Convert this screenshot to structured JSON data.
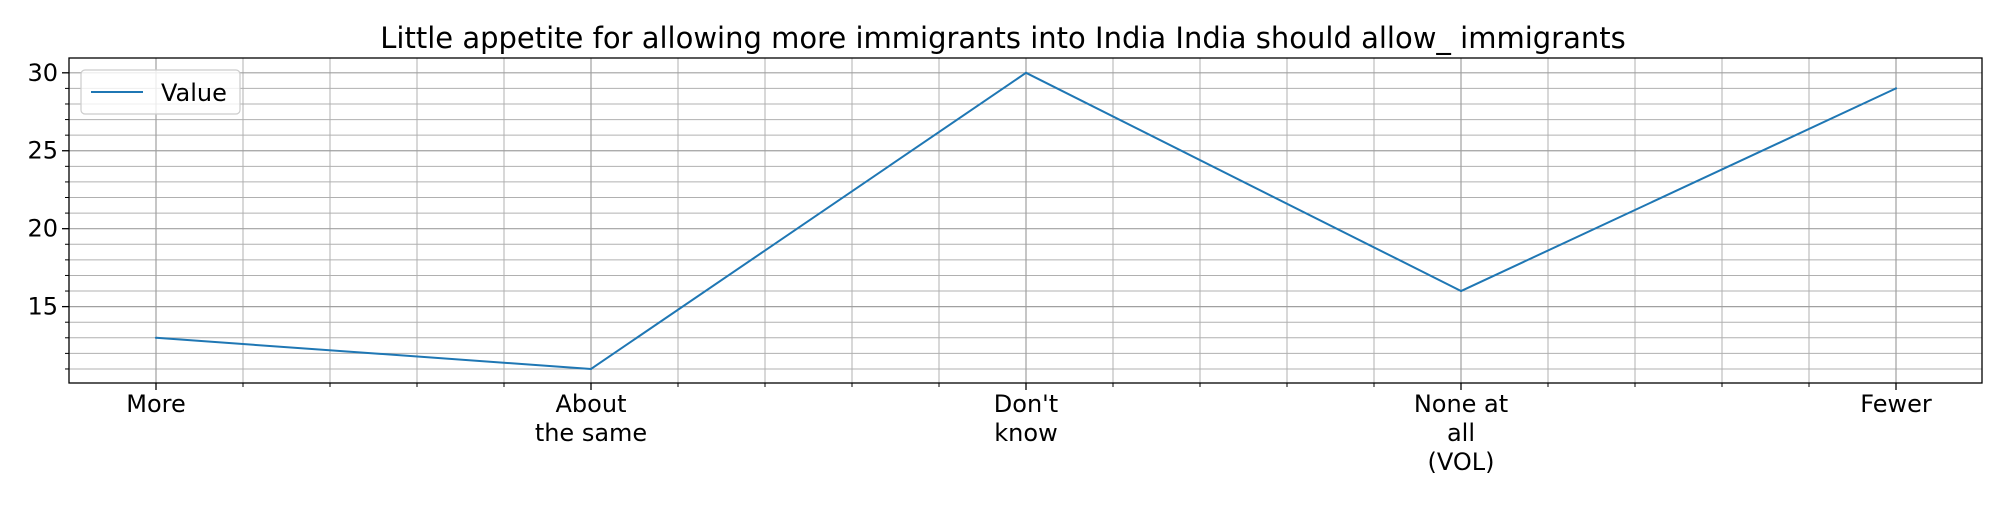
{
  "chart_data": {
    "type": "line",
    "title": "Little appetite for allowing more immigrants into India India should allow_ immigrants",
    "xlabel": "",
    "ylabel": "",
    "categories": [
      [
        "More"
      ],
      [
        "About",
        "the same"
      ],
      [
        "Don't",
        "know"
      ],
      [
        "None at",
        "all",
        "(VOL)"
      ],
      [
        "Fewer"
      ]
    ],
    "series": [
      {
        "name": "Value",
        "values": [
          13,
          11,
          30,
          16,
          29
        ],
        "color": "#1f77b4"
      }
    ],
    "ylim": [
      10.1,
      30.95
    ],
    "yticks": [
      15,
      20,
      25,
      30
    ],
    "yminor_step": 1,
    "xminor_per_interval": 5,
    "grid": true,
    "legend_position": "top-left"
  }
}
